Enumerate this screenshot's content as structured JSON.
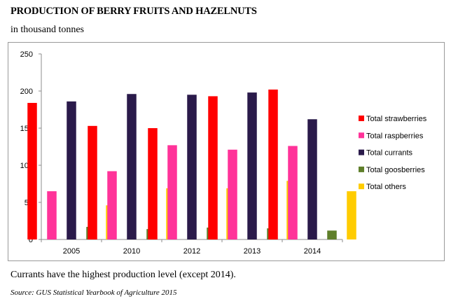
{
  "header": {
    "title": "PRODUCTION OF BERRY FRUITS AND HAZELNUTS",
    "unit": "in thousand tonnes"
  },
  "chart_data": {
    "type": "bar",
    "categories": [
      "2005",
      "2010",
      "2012",
      "2013",
      "2014"
    ],
    "series": [
      {
        "name": "Total strawberries",
        "color": "#ff0000",
        "values": [
          184,
          153,
          150,
          193,
          202
        ]
      },
      {
        "name": "Total raspberries",
        "color": "#ff3399",
        "values": [
          65,
          92,
          127,
          121,
          126
        ]
      },
      {
        "name": "Total currants",
        "color": "#2a1a4a",
        "values": [
          186,
          196,
          195,
          198,
          162
        ]
      },
      {
        "name": "Total goosberries",
        "color": "#5f7f2a",
        "values": [
          17,
          14,
          16,
          15,
          12
        ]
      },
      {
        "name": "Total others",
        "color": "#ffcc00",
        "values": [
          46,
          69,
          69,
          79,
          65
        ]
      }
    ],
    "ylim": [
      0,
      250
    ],
    "yticks": [
      0,
      50,
      100,
      150,
      200,
      250
    ],
    "grid": false,
    "legend_position": "right"
  },
  "footer": {
    "caption": "Currants have the highest production level (except 2014).",
    "source": "Source: GUS Statistical Yearbook of Agriculture 2015"
  }
}
